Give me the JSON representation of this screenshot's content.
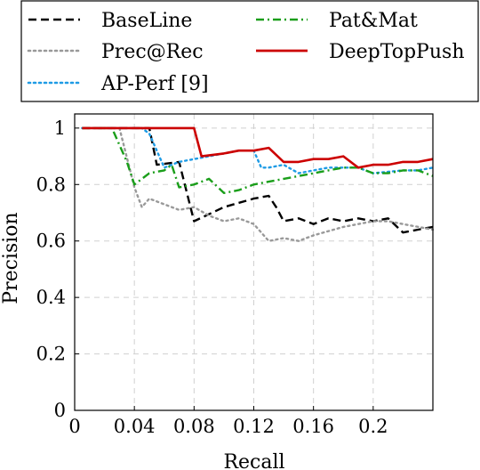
{
  "chart_data": {
    "type": "line",
    "xlabel": "Recall",
    "ylabel": "Precision",
    "xlim": [
      0,
      0.24
    ],
    "ylim": [
      0,
      1.05
    ],
    "xticks": [
      0.04,
      0.08,
      0.12,
      0.16,
      0.2
    ],
    "xtick_labels": [
      "0.04",
      "0.08",
      "0.12",
      "0.16",
      "0.2"
    ],
    "x_origin_label": "0",
    "yticks": [
      0,
      0.2,
      0.4,
      0.6,
      0.8,
      1
    ],
    "ytick_labels": [
      "0",
      "0.2",
      "0.4",
      "0.6",
      "0.8",
      "1"
    ],
    "grid": true,
    "legend_position": "top",
    "series": [
      {
        "name": "BaseLine",
        "color": "#000000",
        "dash": "dashed",
        "x": [
          0.005,
          0.05,
          0.055,
          0.07,
          0.08,
          0.1,
          0.12,
          0.13,
          0.135,
          0.14,
          0.15,
          0.16,
          0.17,
          0.18,
          0.19,
          0.2,
          0.21,
          0.22,
          0.23,
          0.24
        ],
        "y": [
          1.0,
          1.0,
          0.87,
          0.88,
          0.67,
          0.72,
          0.75,
          0.76,
          0.72,
          0.67,
          0.68,
          0.66,
          0.68,
          0.67,
          0.68,
          0.67,
          0.68,
          0.63,
          0.64,
          0.65
        ]
      },
      {
        "name": "Prec@Rec",
        "color": "#999999",
        "dash": "dotted",
        "x": [
          0.005,
          0.03,
          0.04,
          0.045,
          0.05,
          0.06,
          0.07,
          0.08,
          0.09,
          0.1,
          0.11,
          0.12,
          0.13,
          0.14,
          0.15,
          0.16,
          0.18,
          0.2,
          0.21,
          0.22,
          0.24
        ],
        "y": [
          1.0,
          1.0,
          0.79,
          0.72,
          0.75,
          0.73,
          0.71,
          0.72,
          0.69,
          0.67,
          0.68,
          0.66,
          0.6,
          0.61,
          0.6,
          0.62,
          0.65,
          0.67,
          0.67,
          0.66,
          0.64
        ]
      },
      {
        "name": "AP-Perf [9]",
        "color": "#1e9be5",
        "dash": "dotted",
        "x": [
          0.005,
          0.045,
          0.05,
          0.06,
          0.07,
          0.08,
          0.09,
          0.1,
          0.11,
          0.12,
          0.125,
          0.13,
          0.14,
          0.15,
          0.16,
          0.17,
          0.18,
          0.19,
          0.2,
          0.22,
          0.23,
          0.24
        ],
        "y": [
          1.0,
          1.0,
          0.98,
          0.86,
          0.88,
          0.89,
          0.9,
          0.91,
          0.92,
          0.92,
          0.86,
          0.86,
          0.87,
          0.84,
          0.85,
          0.86,
          0.86,
          0.86,
          0.84,
          0.85,
          0.85,
          0.86
        ]
      },
      {
        "name": "Pat&Mat",
        "color": "#1a9e1a",
        "dash": "dashdot",
        "x": [
          0.005,
          0.025,
          0.035,
          0.04,
          0.05,
          0.06,
          0.065,
          0.07,
          0.08,
          0.09,
          0.1,
          0.11,
          0.12,
          0.13,
          0.14,
          0.15,
          0.16,
          0.17,
          0.18,
          0.19,
          0.2,
          0.21,
          0.22,
          0.23,
          0.24
        ],
        "y": [
          1.0,
          1.0,
          0.88,
          0.8,
          0.84,
          0.85,
          0.87,
          0.79,
          0.8,
          0.82,
          0.77,
          0.78,
          0.8,
          0.81,
          0.82,
          0.83,
          0.84,
          0.85,
          0.86,
          0.86,
          0.84,
          0.84,
          0.85,
          0.85,
          0.83
        ]
      },
      {
        "name": "DeepTopPush",
        "color": "#cc0000",
        "dash": "solid",
        "x": [
          0.005,
          0.08,
          0.085,
          0.1,
          0.11,
          0.12,
          0.13,
          0.14,
          0.15,
          0.16,
          0.17,
          0.18,
          0.19,
          0.2,
          0.21,
          0.22,
          0.23,
          0.24
        ],
        "y": [
          1.0,
          1.0,
          0.9,
          0.91,
          0.92,
          0.92,
          0.93,
          0.88,
          0.88,
          0.89,
          0.89,
          0.9,
          0.86,
          0.87,
          0.87,
          0.88,
          0.88,
          0.89
        ]
      }
    ]
  }
}
